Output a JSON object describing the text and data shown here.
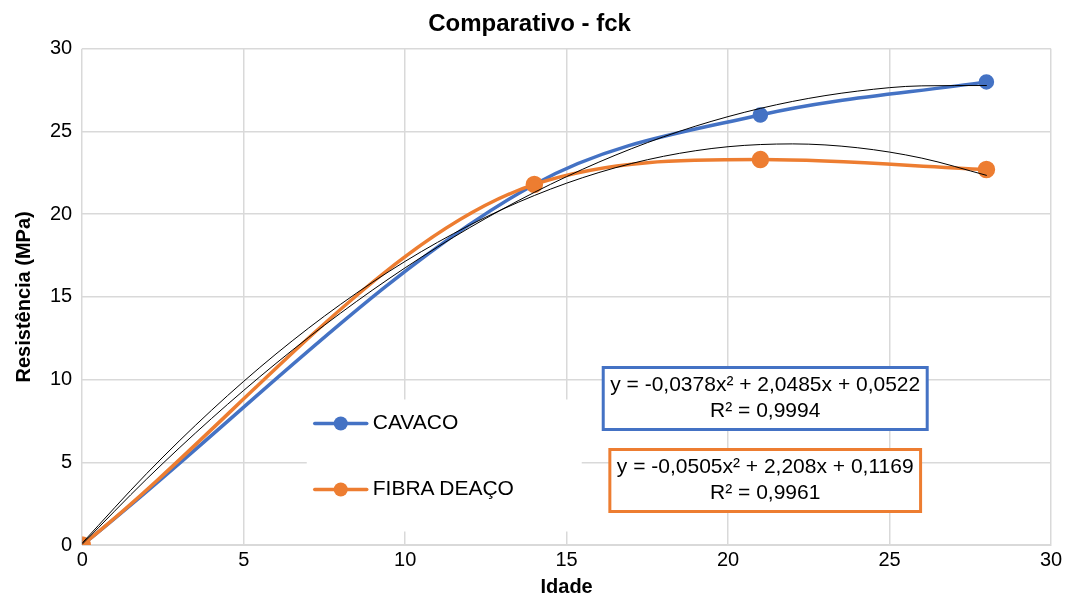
{
  "chart_data": {
    "type": "line",
    "title": "Comparativo - fck",
    "xlabel": "Idade",
    "ylabel": "Resistência (MPa)",
    "xlim": [
      0,
      30
    ],
    "xticks": [
      0,
      5,
      10,
      15,
      20,
      25,
      30
    ],
    "ylim": [
      0,
      30
    ],
    "yticks": [
      0,
      5,
      10,
      15,
      20,
      25,
      30
    ],
    "grid": true,
    "legend": "left",
    "marker": "circle",
    "line_style": "solid",
    "series": [
      {
        "name": "CAVACO",
        "color": "#4472c4",
        "x": [
          0,
          14,
          21,
          28
        ],
        "values": [
          0,
          21.8,
          26,
          28
        ]
      },
      {
        "name": "FIBRA DEAÇO",
        "color": "#ed7d31",
        "x": [
          0,
          14,
          21,
          28
        ],
        "values": [
          0,
          21.8,
          23.3,
          22.7
        ]
      },
      {
        "type": "line",
        "color": "#000000",
        "marker": "none",
        "x": [
          0,
          2,
          4,
          6,
          8,
          10,
          12,
          14,
          16,
          18,
          20,
          22,
          24,
          26,
          28
        ],
        "values": [
          0.05,
          4.0,
          7.64,
          10.98,
          14.02,
          16.76,
          19.19,
          21.32,
          23.15,
          24.68,
          25.9,
          26.82,
          27.44,
          27.76,
          27.78
        ]
      },
      {
        "type": "line",
        "color": "#000000",
        "marker": "none",
        "x": [
          0,
          2,
          4,
          6,
          8,
          10,
          12,
          14,
          16,
          18,
          20,
          22,
          24,
          26,
          28
        ],
        "values": [
          0.12,
          4.33,
          8.14,
          11.55,
          14.55,
          17.15,
          19.34,
          21.13,
          22.52,
          23.5,
          24.08,
          24.25,
          24.02,
          23.39,
          22.35
        ]
      }
    ],
    "annotations": [
      "y = -0,0378x² + 2,0485x + 0,0522\nR² = 0,9994",
      "y = -0,0505x² + 2,208x + 0,1169\nR² = 0,9961"
    ]
  }
}
